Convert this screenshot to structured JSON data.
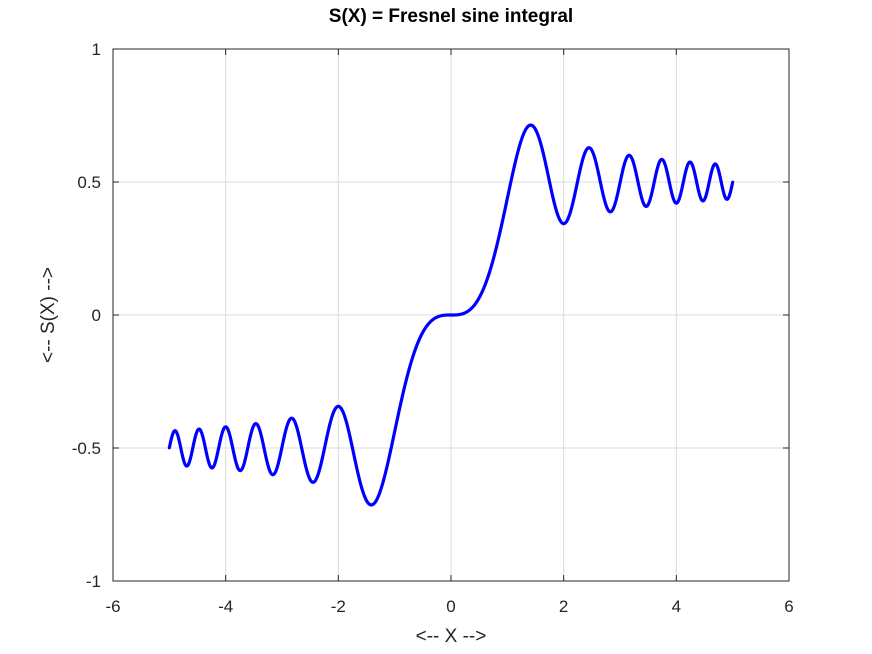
{
  "chart_data": {
    "type": "line",
    "title": "S(X) = Fresnel sine integral",
    "xlabel": "<-- X -->",
    "ylabel": "<-- S(X) -->",
    "xlim": [
      -6,
      6
    ],
    "ylim": [
      -1,
      1
    ],
    "xticks": [
      -6,
      -4,
      -2,
      0,
      2,
      4,
      6
    ],
    "xtick_labels": [
      "-6",
      "-4",
      "-2",
      "0",
      "2",
      "4",
      "6"
    ],
    "yticks": [
      -1,
      -0.5,
      0,
      0.5,
      1
    ],
    "ytick_labels": [
      "-1",
      "-0.5",
      "0",
      "0.5",
      "1"
    ],
    "grid": true,
    "series": [
      {
        "color": "#0000ff",
        "x_range": [
          -5,
          5
        ],
        "x": [
          -5,
          -4.95,
          -4.85,
          -4.75,
          -4.5,
          -4.28,
          -4,
          -3.75,
          -3.5,
          -3.2,
          -2.83,
          -2.45,
          -2,
          -1.41,
          -1.0,
          -0.5,
          0,
          0.5,
          1.0,
          1.41,
          2,
          2.45,
          2.83,
          3.2,
          3.5,
          3.75,
          4,
          4.28,
          4.5,
          4.75,
          4.85,
          4.95,
          5
        ],
        "y": [
          -0.4992,
          -0.46,
          -0.44,
          -0.56,
          -0.43,
          -0.57,
          -0.42,
          -0.58,
          -0.41,
          -0.59,
          -0.39,
          -0.63,
          -0.34,
          -0.71,
          -0.44,
          -0.06,
          0,
          0.06,
          0.44,
          0.71,
          0.34,
          0.63,
          0.39,
          0.59,
          0.41,
          0.58,
          0.42,
          0.57,
          0.43,
          0.56,
          0.44,
          0.46,
          0.4992
        ]
      }
    ]
  }
}
